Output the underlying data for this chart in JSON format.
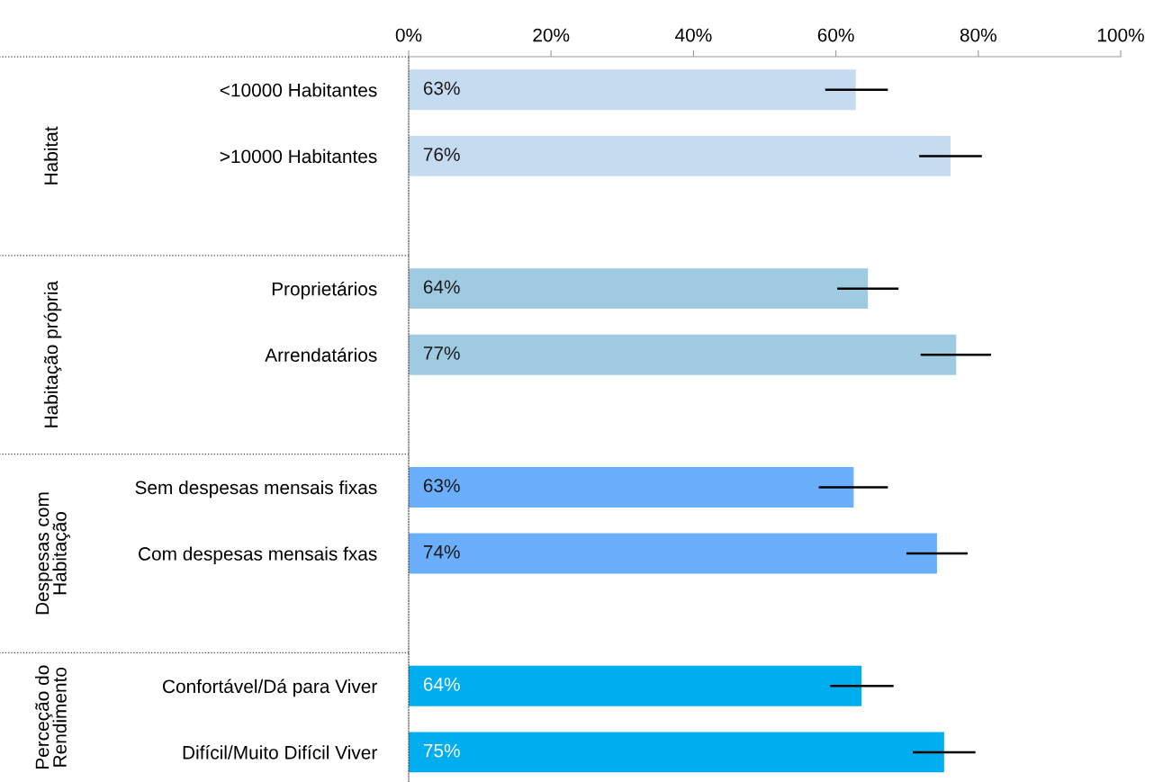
{
  "chart_data": {
    "type": "bar",
    "orientation": "horizontal",
    "categories": [
      "<10000 Habitantes",
      ">10000 Habitantes",
      null,
      "Proprietários",
      "Arrendatários",
      null,
      "Sem despesas mensais fixas",
      "Com despesas mensais fxas",
      null,
      "Confortável/Dá para Viver",
      "Difícil/Muito Difícil Viver"
    ],
    "values": [
      62.8,
      76.1,
      null,
      64.5,
      76.9,
      null,
      62.5,
      74.2,
      null,
      63.6,
      75.2
    ],
    "colors": [
      "#c5dbf0",
      "#c5dbf0",
      null,
      "#9fcbe2",
      "#9fcbe2",
      null,
      "#6aaefc",
      "#6aaefc",
      null,
      "#00adef",
      "#00adef"
    ],
    "errors": [
      [
        58.5,
        67.3
      ],
      [
        71.7,
        80.5
      ],
      null,
      [
        60.2,
        68.8
      ],
      [
        71.9,
        81.8
      ],
      null,
      [
        57.6,
        67.3
      ],
      [
        69.9,
        78.5
      ],
      null,
      [
        59.2,
        68.1
      ],
      [
        70.8,
        79.6
      ]
    ],
    "value_labels": [
      "63%",
      "76%",
      null,
      "64%",
      "77%",
      null,
      "63%",
      "74%",
      null,
      "64%",
      "75%"
    ],
    "xlim": [
      0,
      100
    ],
    "xticks": [
      {
        "value": 0,
        "label": "0%"
      },
      {
        "value": 20,
        "label": "20%"
      },
      {
        "value": 40,
        "label": "40%"
      },
      {
        "value": 60,
        "label": "60%"
      },
      {
        "value": 80,
        "label": "80%"
      },
      {
        "value": 100,
        "label": "100%"
      }
    ],
    "annotations": [
      "Habitat",
      "Habitação própria",
      "Despesas com\nHabitação",
      "Perceção do\nRendimento"
    ],
    "grid": false,
    "legend": false
  }
}
